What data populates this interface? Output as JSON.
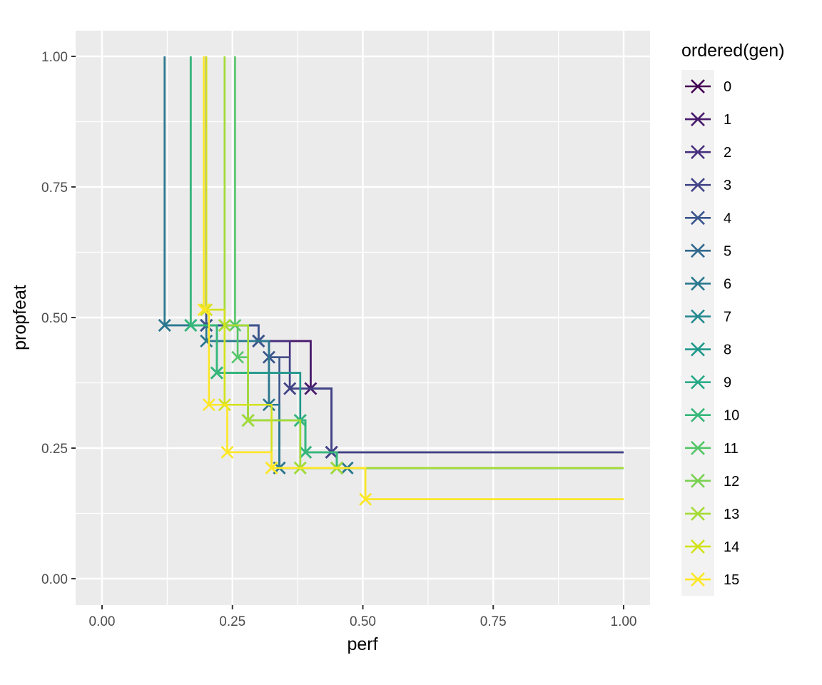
{
  "chart_data": {
    "type": "line",
    "subtype": "step",
    "title": "",
    "xlabel": "perf",
    "ylabel": "propfeat",
    "xlim": [
      0,
      1
    ],
    "ylim": [
      0,
      1
    ],
    "x_ticks": [
      0,
      0.25,
      0.5,
      0.75,
      1
    ],
    "x_tick_labels": [
      "0.00",
      "0.25",
      "0.50",
      "0.75",
      "1.00"
    ],
    "y_ticks": [
      0,
      0.25,
      0.5,
      0.75,
      1
    ],
    "y_tick_labels": [
      "0.00",
      "0.25",
      "0.50",
      "0.75",
      "1.00"
    ],
    "grid": true,
    "marker": "x",
    "legend": {
      "title": "ordered(gen)",
      "position": "right"
    },
    "series": [
      {
        "name": "0",
        "color": "#440154",
        "x": [
          0.2,
          0.3,
          0.4,
          0.44
        ],
        "y": [
          0.485,
          0.455,
          0.364,
          0.242
        ]
      },
      {
        "name": "1",
        "color": "#481A6C",
        "x": [
          0.2,
          0.3,
          0.4,
          0.44
        ],
        "y": [
          0.485,
          0.455,
          0.364,
          0.242
        ]
      },
      {
        "name": "2",
        "color": "#472F7D",
        "x": [
          0.2,
          0.3,
          0.36,
          0.44
        ],
        "y": [
          0.485,
          0.455,
          0.364,
          0.242
        ]
      },
      {
        "name": "3",
        "color": "#414487",
        "x": [
          0.2,
          0.3,
          0.32,
          0.36,
          0.44
        ],
        "y": [
          0.485,
          0.455,
          0.424,
          0.364,
          0.242
        ]
      },
      {
        "name": "4",
        "color": "#39568C",
        "x": [
          0.2,
          0.3,
          0.32,
          0.34,
          0.47
        ],
        "y": [
          0.485,
          0.455,
          0.424,
          0.212,
          0.212
        ]
      },
      {
        "name": "5",
        "color": "#31688E",
        "x": [
          0.12,
          0.2,
          0.32,
          0.34,
          0.47
        ],
        "y": [
          0.485,
          0.455,
          0.333,
          0.212,
          0.212
        ]
      },
      {
        "name": "6",
        "color": "#2A788E",
        "x": [
          0.12,
          0.2,
          0.32,
          0.34,
          0.47
        ],
        "y": [
          0.485,
          0.455,
          0.333,
          0.212,
          0.212
        ]
      },
      {
        "name": "7",
        "color": "#23888E",
        "x": [
          0.17,
          0.22,
          0.38,
          0.39,
          0.45
        ],
        "y": [
          0.485,
          0.394,
          0.303,
          0.242,
          0.212
        ]
      },
      {
        "name": "8",
        "color": "#1F988B",
        "x": [
          0.17,
          0.22,
          0.38,
          0.39,
          0.45
        ],
        "y": [
          0.485,
          0.394,
          0.303,
          0.242,
          0.212
        ]
      },
      {
        "name": "9",
        "color": "#22A884",
        "x": [
          0.17,
          0.22,
          0.28,
          0.38,
          0.39,
          0.45
        ],
        "y": [
          0.485,
          0.394,
          0.303,
          0.303,
          0.242,
          0.212
        ]
      },
      {
        "name": "10",
        "color": "#35B779",
        "x": [
          0.17,
          0.22,
          0.28,
          0.38,
          0.39,
          0.45
        ],
        "y": [
          0.485,
          0.394,
          0.303,
          0.303,
          0.242,
          0.212
        ]
      },
      {
        "name": "11",
        "color": "#54C568",
        "x": [
          0.255,
          0.26,
          0.28,
          0.38,
          0.45
        ],
        "y": [
          0.485,
          0.424,
          0.303,
          0.212,
          0.212
        ]
      },
      {
        "name": "12",
        "color": "#7AD151",
        "x": [
          0.235,
          0.28,
          0.38,
          0.45
        ],
        "y": [
          0.485,
          0.303,
          0.212,
          0.212
        ]
      },
      {
        "name": "13",
        "color": "#A5DB36",
        "x": [
          0.235,
          0.28,
          0.38,
          0.45
        ],
        "y": [
          0.485,
          0.303,
          0.212,
          0.212
        ]
      },
      {
        "name": "14",
        "color": "#D2E21B",
        "x": [
          0.2,
          0.235,
          0.325,
          0.505
        ],
        "y": [
          0.515,
          0.333,
          0.212,
          0.152
        ]
      },
      {
        "name": "15",
        "color": "#FDE725",
        "x": [
          0.195,
          0.205,
          0.24,
          0.325,
          0.505
        ],
        "y": [
          0.515,
          0.333,
          0.242,
          0.212,
          0.152
        ]
      }
    ]
  }
}
